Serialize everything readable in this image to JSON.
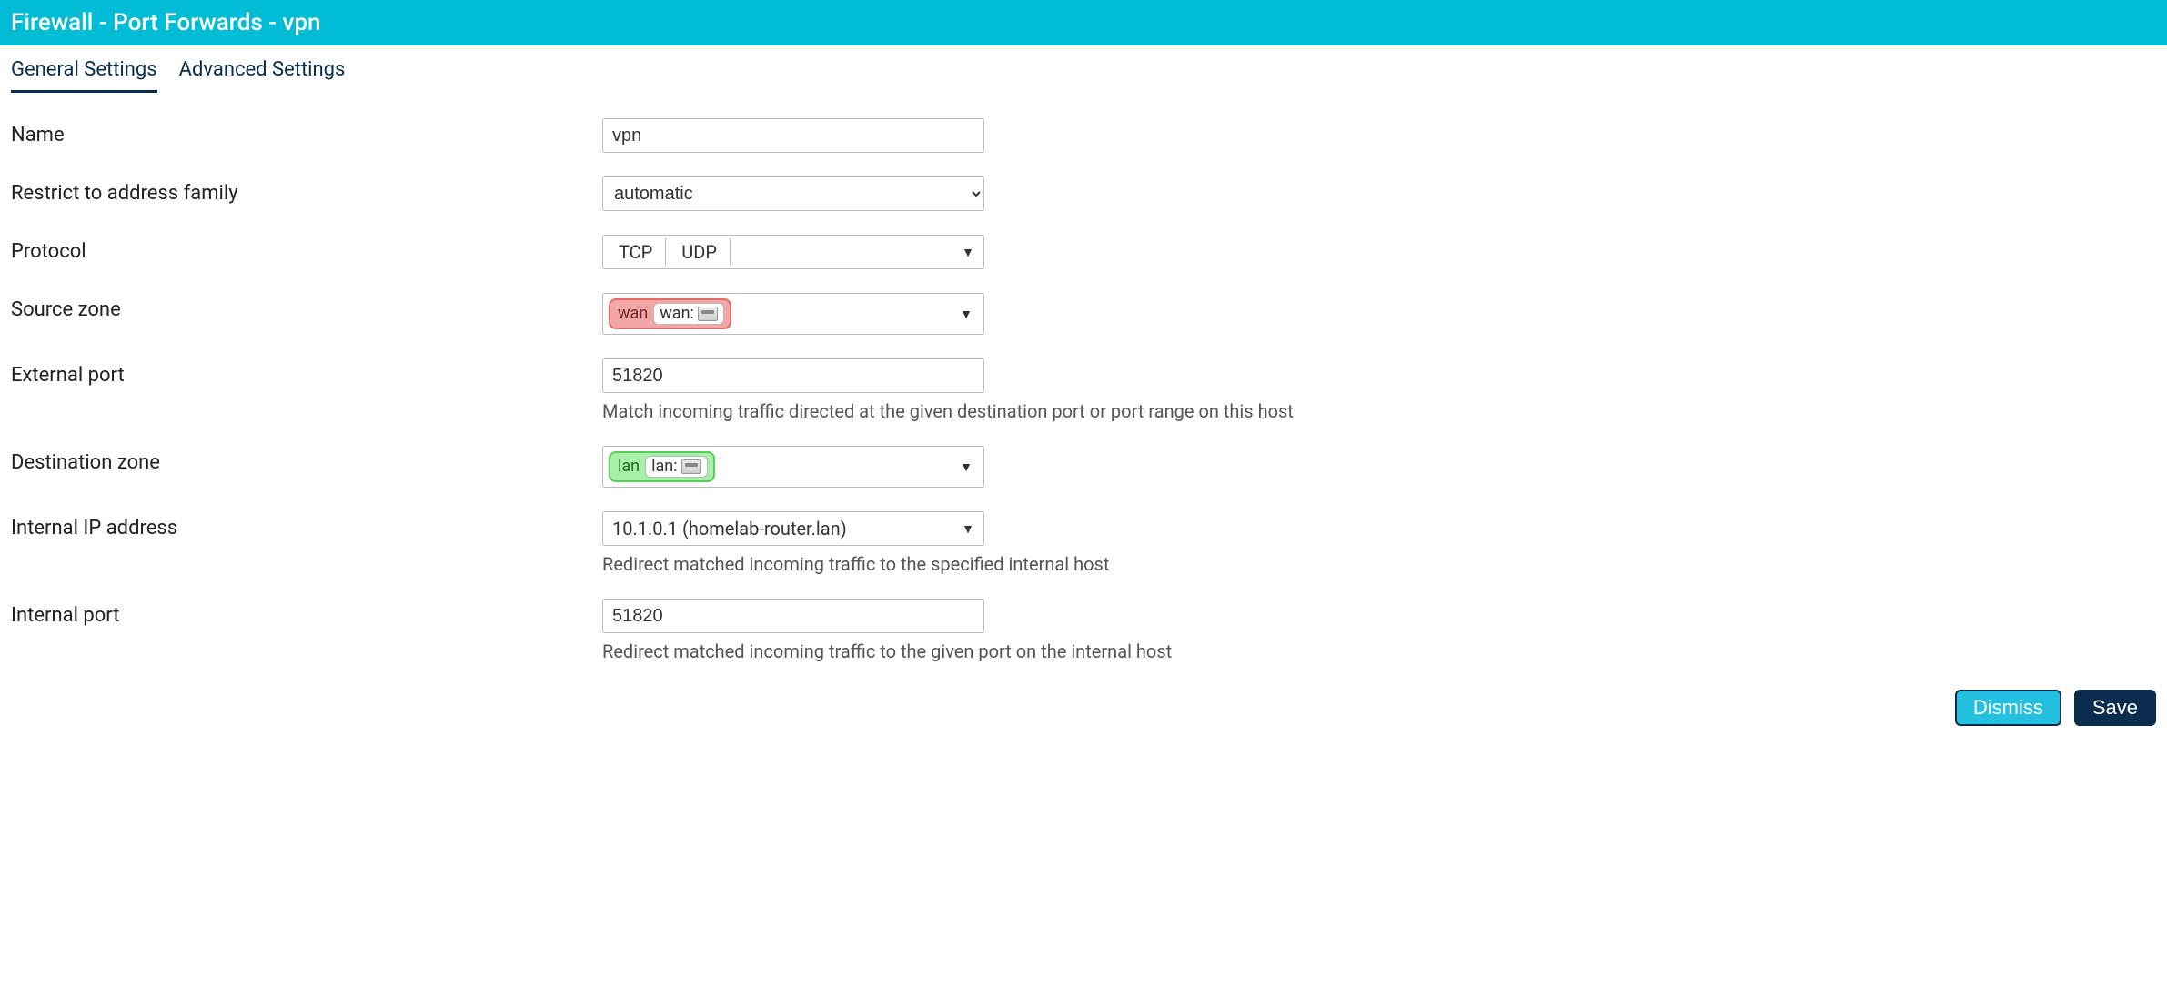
{
  "header": {
    "title": "Firewall - Port Forwards - vpn"
  },
  "tabs": {
    "general": "General Settings",
    "advanced": "Advanced Settings",
    "active": "general"
  },
  "form": {
    "name": {
      "label": "Name",
      "value": "vpn"
    },
    "family": {
      "label": "Restrict to address family",
      "value": "automatic"
    },
    "protocol": {
      "label": "Protocol",
      "values": [
        "TCP",
        "UDP"
      ]
    },
    "source_zone": {
      "label": "Source zone",
      "zone_name": "wan",
      "iface_label": "wan:",
      "badge_color": "#f2a6a6",
      "badge_border": "#e46b6b"
    },
    "external_port": {
      "label": "External port",
      "value": "51820",
      "help": "Match incoming traffic directed at the given destination port or port range on this host"
    },
    "dest_zone": {
      "label": "Destination zone",
      "zone_name": "lan",
      "iface_label": "lan:",
      "badge_color": "#a7f0a7",
      "badge_border": "#58cf58"
    },
    "internal_ip": {
      "label": "Internal IP address",
      "value": "10.1.0.1 (homelab-router.lan)",
      "help": "Redirect matched incoming traffic to the specified internal host"
    },
    "internal_port": {
      "label": "Internal port",
      "value": "51820",
      "help": "Redirect matched incoming traffic to the given port on the internal host"
    }
  },
  "buttons": {
    "dismiss": "Dismiss",
    "save": "Save"
  },
  "colors": {
    "header_bg": "#00bcd4",
    "tab_text": "#0b2d4d",
    "btn_save_bg": "#0b2d4d",
    "btn_dismiss_bg": "#24c0e2"
  }
}
